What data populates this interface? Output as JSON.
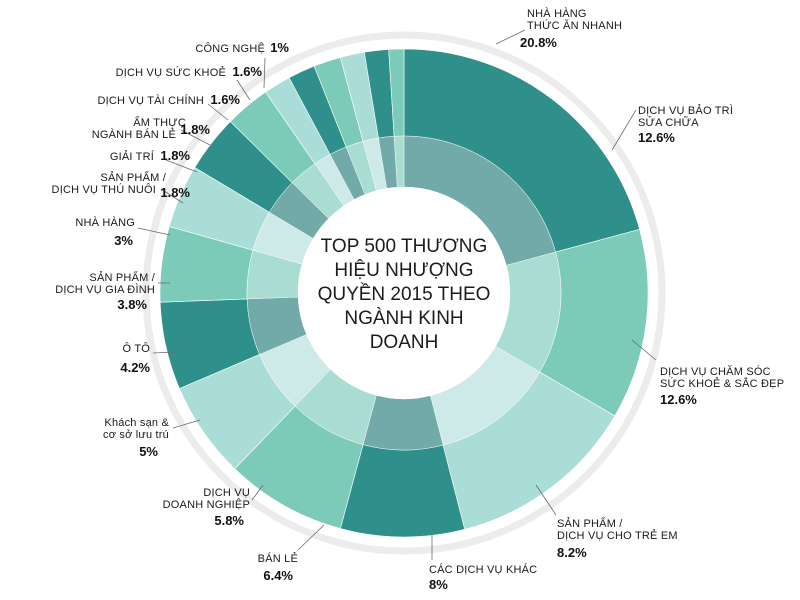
{
  "chart_data": {
    "type": "donut",
    "title": "TOP 500 THƯƠNG HIỆU NHƯỢNG QUYỀN 2015 THEO NGÀNH KINH DOANH",
    "title_lines": [
      "TOP 500 THƯƠNG",
      "HIỆU NHƯỢNG",
      "QUYỀN 2015 THEO",
      "NGÀNH KINH",
      "DOANH"
    ],
    "slices": [
      {
        "name": "NHÀ HÀNG THỨC ĂN NHANH",
        "name_lines": [
          "NHÀ HÀNG",
          "THỨC ĂN NHANH"
        ],
        "value": 20.8,
        "label": "20.8%",
        "color": "#2e8f8b"
      },
      {
        "name": "DỊCH VỤ BẢO TRÌ SỬA CHỮA",
        "name_lines": [
          "DỊCH VỤ BẢO TRÌ",
          "SỬA CHỮA"
        ],
        "value": 12.6,
        "label": "12.6%",
        "color": "#7ccbb9"
      },
      {
        "name": "DỊCH VỤ CHĂM SÓC SỨC KHOẺ & SẮC ĐẸP",
        "name_lines": [
          "DỊCH VỤ CHĂM SÓC",
          "SỨC KHOẺ & SẮC ĐẸP"
        ],
        "value": 12.6,
        "label": "12.6%",
        "color": "#aadcd8"
      },
      {
        "name": "SẢN PHẨM / DỊCH VỤ CHO TRẺ EM",
        "name_lines": [
          "SẢN PHẨM /",
          "DỊCH VỤ CHO TRẺ EM"
        ],
        "value": 8.2,
        "label": "8.2%",
        "color": "#2e8f8b"
      },
      {
        "name": "CÁC DỊCH VỤ KHÁC",
        "name_lines": [
          "CÁC DỊCH VỤ KHÁC"
        ],
        "value": 8,
        "label": "8%",
        "color": "#7ccbb9"
      },
      {
        "name": "BÁN LẺ",
        "name_lines": [
          "BÁN LẺ"
        ],
        "value": 6.4,
        "label": "6.4%",
        "color": "#aadcd8"
      },
      {
        "name": "DỊCH VỤ DOANH NGHIỆP",
        "name_lines": [
          "DỊCH VỤ",
          "DOANH NGHIỆP"
        ],
        "value": 5.8,
        "label": "5.8%",
        "color": "#2e8f8b"
      },
      {
        "name": "Khách sạn & cơ sở lưu trú",
        "name_lines": [
          "Khách sạn &",
          "cơ sở lưu trú"
        ],
        "value": 5,
        "label": "5%",
        "color": "#7ccbb9"
      },
      {
        "name": "Ô TÔ",
        "name_lines": [
          "Ô TÔ"
        ],
        "value": 4.2,
        "label": "4.2%",
        "color": "#aadcd8"
      },
      {
        "name": "SẢN PHẨM / DỊCH VỤ GIA ĐÌNH",
        "name_lines": [
          "SẢN PHẨM /",
          "DỊCH VỤ GIA ĐÌNH"
        ],
        "value": 3.8,
        "label": "3.8%",
        "color": "#2e8f8b"
      },
      {
        "name": "NHÀ HÀNG",
        "name_lines": [
          "NHÀ HÀNG"
        ],
        "value": 3,
        "label": "3%",
        "color": "#7ccbb9"
      },
      {
        "name": "SẢN PHẨM / DỊCH VỤ THÚ NUÔI",
        "name_lines": [
          "SẢN PHẨM /",
          "DỊCH VỤ THÚ NUÔI"
        ],
        "value": 1.8,
        "label": "1.8%",
        "color": "#aadcd8"
      },
      {
        "name": "GIẢI TRÍ",
        "name_lines": [
          "GIẢI TRÍ"
        ],
        "value": 1.8,
        "label": "1.8%",
        "color": "#2e8f8b"
      },
      {
        "name": "ẨM THỰC NGÀNH BÁN LẺ",
        "name_lines": [
          "ẨM THỰC",
          "NGÀNH BÁN LẺ"
        ],
        "value": 1.8,
        "label": "1.8%",
        "color": "#7ccbb9"
      },
      {
        "name": "DỊCH VỤ TÀI CHÍNH",
        "name_lines": [
          "DỊCH VỤ TÀI CHÍNH"
        ],
        "value": 1.6,
        "label": "1.6%",
        "color": "#aadcd8"
      },
      {
        "name": "DỊCH VỤ SỨC KHOẺ",
        "name_lines": [
          "DỊCH VỤ SỨC KHOẺ"
        ],
        "value": 1.6,
        "label": "1.6%",
        "color": "#2e8f8b"
      },
      {
        "name": "CÔNG NGHỆ",
        "name_lines": [
          "CÔNG NGHỆ"
        ],
        "value": 1,
        "label": "1%",
        "color": "#7ccbb9"
      }
    ]
  }
}
